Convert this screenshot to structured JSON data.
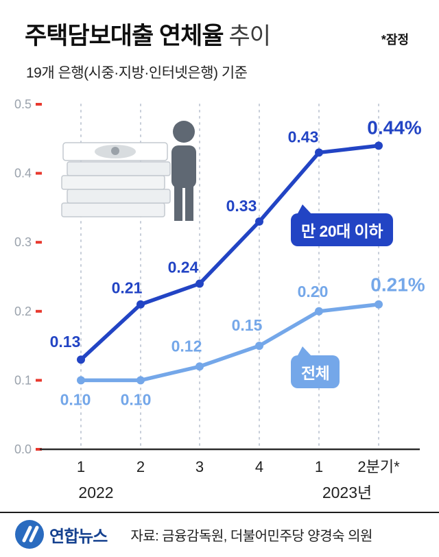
{
  "header": {
    "title_bold": "주택담보대출 연체율",
    "title_light": "추이",
    "note": "*잠정",
    "subtitle": "19개 은행(시중·지방·인터넷은행) 기준"
  },
  "colors": {
    "series_dark_blue": "#2244c4",
    "series_light_blue": "#74a7e9",
    "tick_red": "#e8392e",
    "axis_gray": "#9aa2ac"
  },
  "chart_data": {
    "type": "line",
    "x": [
      "1",
      "2",
      "3",
      "4",
      "1",
      "2분기*"
    ],
    "year_labels": [
      "2022",
      "2023년"
    ],
    "yticks": [
      "0.0",
      "0.1",
      "0.2",
      "0.3",
      "0.4",
      "0.5"
    ],
    "ylim": [
      0.0,
      0.5
    ],
    "grid": "vertical-dashed",
    "legend_position": "callouts-on-plot",
    "series": [
      {
        "name": "만 20대 이하",
        "color": "#2244c4",
        "values": [
          0.13,
          0.21,
          0.24,
          0.33,
          0.43,
          0.44
        ],
        "point_labels": [
          "0.13",
          "0.21",
          "0.24",
          "0.33",
          "0.43",
          "0.44%"
        ]
      },
      {
        "name": "전체",
        "color": "#74a7e9",
        "values": [
          0.1,
          0.1,
          0.12,
          0.15,
          0.2,
          0.21
        ],
        "point_labels": [
          "0.10",
          "0.10",
          "0.12",
          "0.15",
          "0.20",
          "0.21%"
        ]
      }
    ]
  },
  "footer": {
    "logo_text": "연합뉴스",
    "source": "자료: 금융감독원, 더불어민주당 양경숙 의원"
  }
}
